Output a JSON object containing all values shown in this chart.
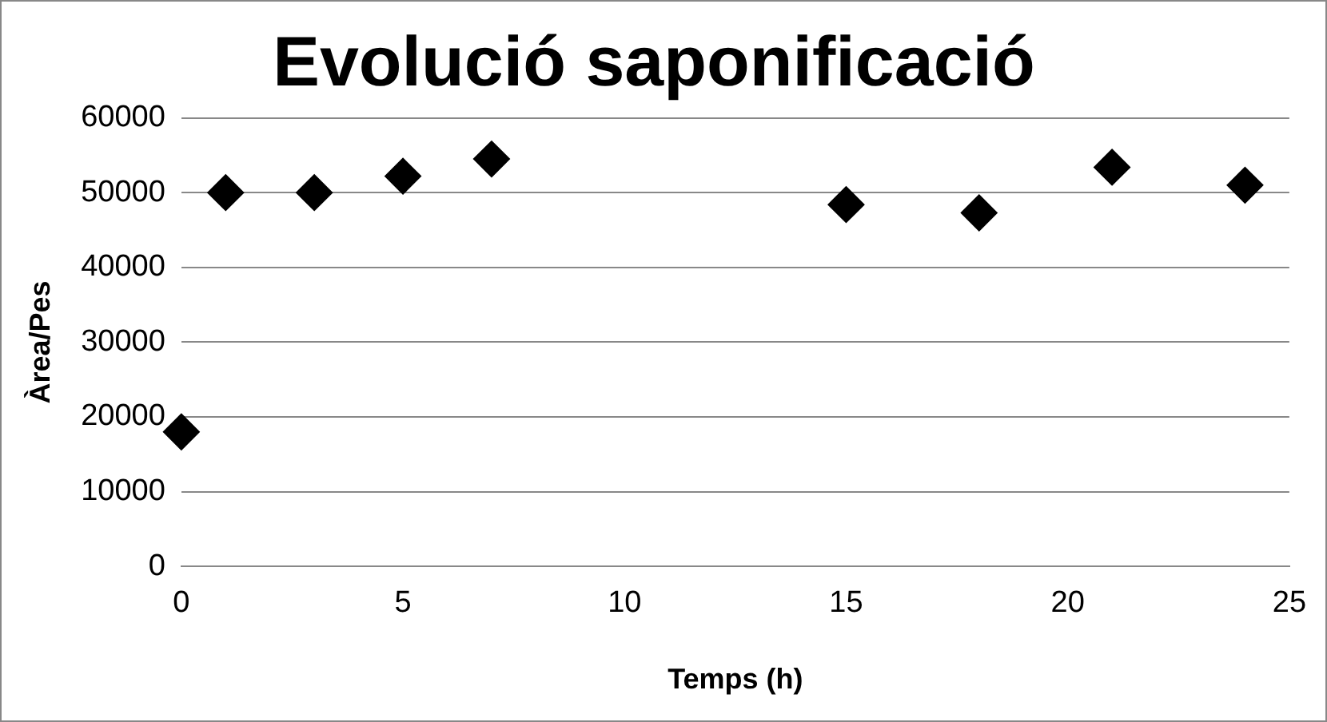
{
  "chart_data": {
    "type": "scatter",
    "title": "Evolució saponificació",
    "xlabel": "Temps (h)",
    "ylabel": "Àrea/Pes",
    "x": [
      0,
      1,
      3,
      5,
      7,
      15,
      18,
      21,
      24
    ],
    "values": [
      18000,
      50000,
      50000,
      52200,
      54500,
      48400,
      47300,
      53400,
      51000
    ],
    "color": "#000000",
    "marker": "diamond",
    "xlim": [
      0,
      25
    ],
    "xticks": [
      0,
      5,
      10,
      15,
      20,
      25
    ],
    "ylim": [
      0,
      60000
    ],
    "yticks": [
      0,
      10000,
      20000,
      30000,
      40000,
      50000,
      60000
    ],
    "grid": "y",
    "legend": false
  }
}
